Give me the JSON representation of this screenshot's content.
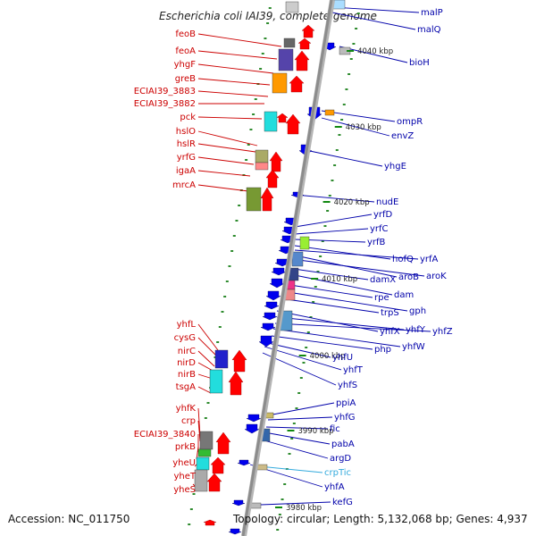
{
  "title": "Escherichia coli IAI39, complete genome",
  "accession": "Accession: NC_011750",
  "topology": "Topology: circular; Length: 5,132,068 bp; Genes: 4,937",
  "colors": {
    "backbone": "#8c8c8c",
    "left_label": "#cc0000",
    "right_label": "#0000aa",
    "highlight_label": "#33aadd",
    "left_gene": "#ff0000",
    "right_gene": "#0000ee",
    "tick_mark": "#118811"
  },
  "ticks": [
    "4040 kbp",
    "4030 kbp",
    "4020 kbp",
    "4010 kbp",
    "4000 kbp",
    "3990 kbp",
    "3980 kbp"
  ],
  "left_labels": [
    "feoB",
    "feoA",
    "yhgF",
    "greB",
    "ECIAI39_3883",
    "ECIAI39_3882",
    "pck",
    "hslO",
    "hslR",
    "yrfG",
    "igaA",
    "mrcA",
    "yhfL",
    "cysG",
    "nirC",
    "nirD",
    "nirB",
    "tsgA",
    "yhfK",
    "crp",
    "ECIAI39_3840",
    "prkB",
    "yheU",
    "yheT",
    "yheS"
  ],
  "right_labels": [
    "malP",
    "malQ",
    "bioH",
    "ompR",
    "envZ",
    "yhgE",
    "nudE",
    "yrfD",
    "yrfC",
    "yrfB",
    "hofQ",
    "yrfA",
    "aroB",
    "aroK",
    "damX",
    "dam",
    "rpe",
    "gph",
    "trpS",
    "yhfX",
    "yhfY",
    "yhfZ",
    "yhfW",
    "php",
    "yhfU",
    "yhfT",
    "yhfS",
    "ppiA",
    "yhfG",
    "fic",
    "pabA",
    "argD",
    "crpTic",
    "yhfA",
    "kefG"
  ]
}
